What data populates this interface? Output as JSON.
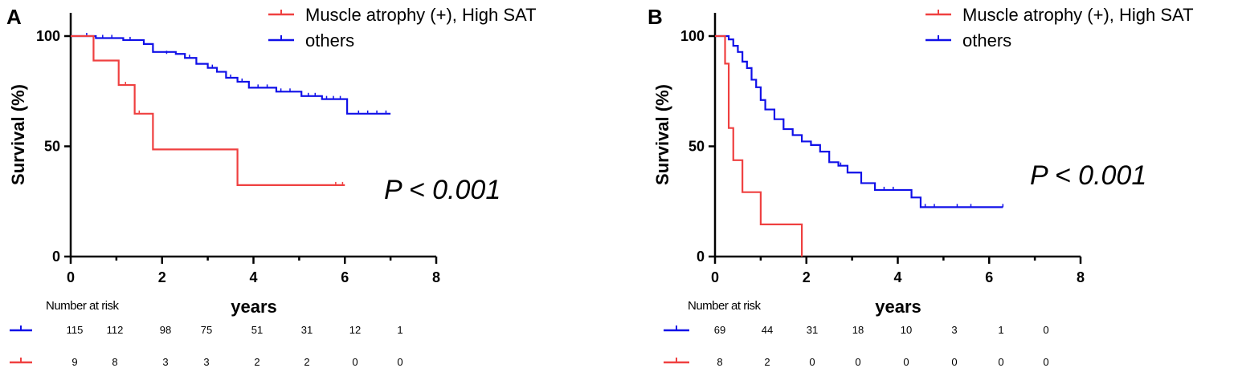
{
  "chart_data": [
    {
      "type": "line",
      "panel_label": "A",
      "xlabel": "years",
      "ylabel": "Survival (%)",
      "xlim": [
        0,
        8
      ],
      "ylim": [
        0,
        100
      ],
      "xticks": [
        0,
        2,
        4,
        6,
        8
      ],
      "yticks": [
        0,
        50,
        100
      ],
      "legend": [
        "Muscle atrophy (+), High SAT",
        "others"
      ],
      "annotation": "P < 0.001",
      "colors": {
        "red": "#ef4040",
        "blue": "#1010e8"
      },
      "series": [
        {
          "name": "Muscle atrophy (+), High SAT",
          "color": "#ef4040",
          "steps": [
            [
              0,
              100
            ],
            [
              0.5,
              88.9
            ],
            [
              1.05,
              77.8
            ],
            [
              1.4,
              64.8
            ],
            [
              1.8,
              48.6
            ],
            [
              3.65,
              32.4
            ]
          ],
          "end_x": 6.0,
          "censors": [
            [
              1.2,
              77.8
            ],
            [
              1.5,
              64.8
            ],
            [
              5.8,
              32.4
            ],
            [
              5.95,
              32.4
            ]
          ]
        },
        {
          "name": "others",
          "color": "#1010e8",
          "steps": [
            [
              0,
              100
            ],
            [
              0.55,
              99.1
            ],
            [
              1.15,
              98.2
            ],
            [
              1.6,
              96.4
            ],
            [
              1.8,
              92.8
            ],
            [
              2.3,
              91.9
            ],
            [
              2.5,
              90.1
            ],
            [
              2.75,
              87.4
            ],
            [
              3.0,
              85.6
            ],
            [
              3.2,
              83.8
            ],
            [
              3.4,
              81.1
            ],
            [
              3.65,
              79.3
            ],
            [
              3.9,
              76.6
            ],
            [
              4.5,
              74.8
            ],
            [
              5.05,
              72.8
            ],
            [
              5.5,
              71.4
            ],
            [
              6.05,
              64.8
            ]
          ],
          "end_x": 7.0,
          "censors": [
            [
              0.35,
              100
            ],
            [
              0.7,
              99.1
            ],
            [
              0.9,
              99.1
            ],
            [
              1.3,
              98.2
            ],
            [
              2.1,
              91.9
            ],
            [
              2.6,
              90.1
            ],
            [
              3.1,
              85.6
            ],
            [
              3.5,
              81.1
            ],
            [
              3.75,
              79.3
            ],
            [
              4.1,
              76.6
            ],
            [
              4.3,
              76.6
            ],
            [
              4.6,
              74.8
            ],
            [
              4.8,
              74.8
            ],
            [
              5.2,
              72.8
            ],
            [
              5.35,
              72.8
            ],
            [
              5.6,
              71.4
            ],
            [
              5.75,
              71.4
            ],
            [
              5.9,
              71.4
            ],
            [
              6.3,
              64.8
            ],
            [
              6.5,
              64.8
            ],
            [
              6.7,
              64.8
            ],
            [
              6.9,
              64.8
            ]
          ]
        }
      ],
      "risk_table": {
        "title": "Number at risk",
        "times": [
          0,
          1,
          2,
          3,
          4,
          5,
          6,
          7
        ],
        "rows": [
          {
            "name": "others",
            "color": "#1010e8",
            "values": [
              "115",
              "112",
              "98",
              "75",
              "51",
              "31",
              "12",
              "1"
            ]
          },
          {
            "name": "Muscle atrophy (+), High SAT",
            "color": "#ef4040",
            "values": [
              "9",
              "8",
              "3",
              "3",
              "2",
              "2",
              "0",
              "0"
            ]
          }
        ]
      }
    },
    {
      "type": "line",
      "panel_label": "B",
      "xlabel": "years",
      "ylabel": "Survival (%)",
      "xlim": [
        0,
        8
      ],
      "ylim": [
        0,
        100
      ],
      "xticks": [
        0,
        2,
        4,
        6,
        8
      ],
      "yticks": [
        0,
        50,
        100
      ],
      "legend": [
        "Muscle atrophy (+), High SAT",
        "others"
      ],
      "annotation": "P < 0.001",
      "colors": {
        "red": "#ef4040",
        "blue": "#1010e8"
      },
      "series": [
        {
          "name": "Muscle atrophy (+), High SAT",
          "color": "#ef4040",
          "steps": [
            [
              0,
              100
            ],
            [
              0.22,
              87.5
            ],
            [
              0.3,
              58.3
            ],
            [
              0.4,
              43.7
            ],
            [
              0.6,
              29.2
            ],
            [
              1.0,
              14.6
            ],
            [
              1.9,
              0
            ]
          ],
          "end_x": 1.9,
          "censors": []
        },
        {
          "name": "others",
          "color": "#1010e8",
          "steps": [
            [
              0,
              100
            ],
            [
              0.3,
              98.5
            ],
            [
              0.4,
              95.6
            ],
            [
              0.5,
              92.8
            ],
            [
              0.6,
              88.4
            ],
            [
              0.7,
              85.5
            ],
            [
              0.8,
              80.2
            ],
            [
              0.9,
              76.8
            ],
            [
              1.0,
              71.0
            ],
            [
              1.1,
              66.7
            ],
            [
              1.3,
              62.3
            ],
            [
              1.5,
              57.8
            ],
            [
              1.7,
              55.1
            ],
            [
              1.9,
              52.2
            ],
            [
              2.1,
              50.6
            ],
            [
              2.3,
              47.6
            ],
            [
              2.5,
              42.8
            ],
            [
              2.7,
              41.2
            ],
            [
              2.9,
              38.1
            ],
            [
              3.2,
              33.3
            ],
            [
              3.5,
              30.2
            ],
            [
              4.3,
              26.8
            ],
            [
              4.5,
              22.4
            ]
          ],
          "end_x": 6.3,
          "censors": [
            [
              2.75,
              41.2
            ],
            [
              3.7,
              30.2
            ],
            [
              3.9,
              30.2
            ],
            [
              4.6,
              22.4
            ],
            [
              4.8,
              22.4
            ],
            [
              5.3,
              22.4
            ],
            [
              5.6,
              22.4
            ],
            [
              6.3,
              22.4
            ]
          ]
        }
      ],
      "risk_table": {
        "title": "Number at risk",
        "times": [
          0,
          1,
          2,
          3,
          4,
          5,
          6,
          7
        ],
        "rows": [
          {
            "name": "others",
            "color": "#1010e8",
            "values": [
              "69",
              "44",
              "31",
              "18",
              "10",
              "3",
              "1",
              "0"
            ]
          },
          {
            "name": "Muscle atrophy (+), High SAT",
            "color": "#ef4040",
            "values": [
              "8",
              "2",
              "0",
              "0",
              "0",
              "0",
              "0",
              "0"
            ]
          }
        ]
      }
    }
  ]
}
